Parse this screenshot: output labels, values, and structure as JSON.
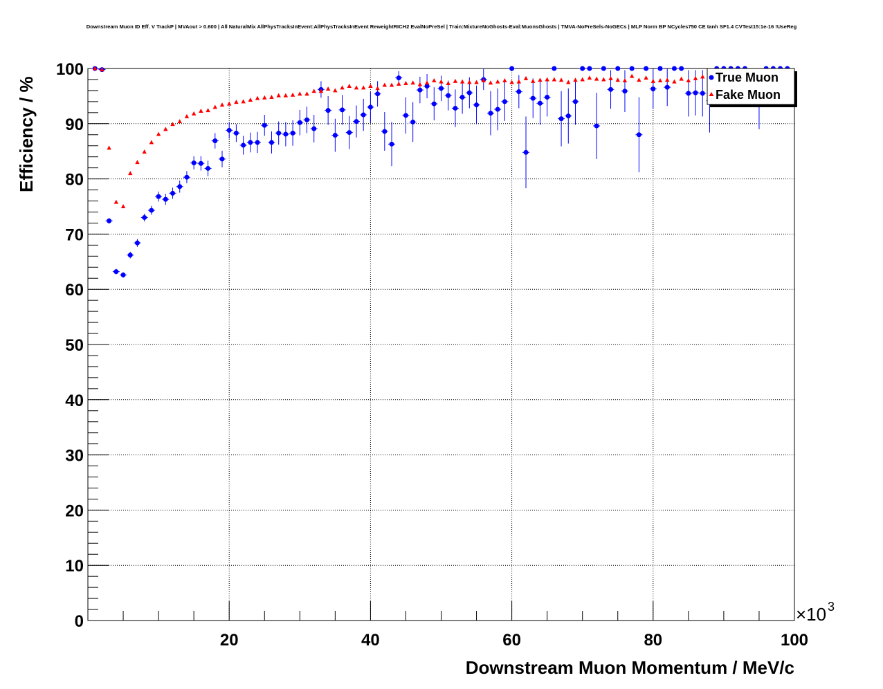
{
  "chart_data": {
    "type": "scatter",
    "title": "Downstream Muon ID Eff. V TrackP | MVAout > 0.600 | All NaturalMix AllPhysTracksInEvent:AllPhysTracksInEvent ReweightRICH2 EvalNoPreSel | Train:MixtureNoGhosts-Eval:MuonsGhosts | TMVA-NoPreSels-NoGECs | MLP Norm BP NCycles750 CE tanh SF1.4 CVTest15:1e-16 !UseReg",
    "xlabel": "Downstream Muon Momentum / MeV/c",
    "ylabel": "Efficiency / %",
    "x_multiplier": "×10",
    "x_multiplier_exp": "3",
    "xlim": [
      0,
      100
    ],
    "ylim": [
      0,
      100
    ],
    "x_ticks": [
      20,
      40,
      60,
      80,
      100
    ],
    "y_ticks": [
      0,
      10,
      20,
      30,
      40,
      50,
      60,
      70,
      80,
      90,
      100
    ],
    "grid": true,
    "legend_position": "top-right",
    "series": [
      {
        "name": "True Muon",
        "color": "#0000ff",
        "marker": "circle",
        "points": [
          {
            "x": 1,
            "y": 100,
            "err": 0
          },
          {
            "x": 2,
            "y": 99.8,
            "err": 0
          },
          {
            "x": 3,
            "y": 72.4,
            "err": 0.5
          },
          {
            "x": 4,
            "y": 63.2,
            "err": 0.5
          },
          {
            "x": 5,
            "y": 62.6,
            "err": 0.5
          },
          {
            "x": 6,
            "y": 66.2,
            "err": 0.6
          },
          {
            "x": 7,
            "y": 68.4,
            "err": 0.7
          },
          {
            "x": 8,
            "y": 73.0,
            "err": 0.7
          },
          {
            "x": 9,
            "y": 74.3,
            "err": 0.8
          },
          {
            "x": 10,
            "y": 76.8,
            "err": 0.9
          },
          {
            "x": 11,
            "y": 76.3,
            "err": 1.0
          },
          {
            "x": 12,
            "y": 77.4,
            "err": 1.0
          },
          {
            "x": 13,
            "y": 78.6,
            "err": 1.1
          },
          {
            "x": 14,
            "y": 80.3,
            "err": 1.1
          },
          {
            "x": 15,
            "y": 82.9,
            "err": 1.2
          },
          {
            "x": 16,
            "y": 82.8,
            "err": 1.3
          },
          {
            "x": 17,
            "y": 81.9,
            "err": 1.4
          },
          {
            "x": 18,
            "y": 86.9,
            "err": 1.4
          },
          {
            "x": 19,
            "y": 83.6,
            "err": 1.5
          },
          {
            "x": 20,
            "y": 88.8,
            "err": 1.5
          },
          {
            "x": 21,
            "y": 88.3,
            "err": 1.6
          },
          {
            "x": 22,
            "y": 86.1,
            "err": 1.7
          },
          {
            "x": 23,
            "y": 86.6,
            "err": 1.8
          },
          {
            "x": 24,
            "y": 86.6,
            "err": 1.9
          },
          {
            "x": 25,
            "y": 89.7,
            "err": 1.9
          },
          {
            "x": 26,
            "y": 86.6,
            "err": 2.0
          },
          {
            "x": 27,
            "y": 88.3,
            "err": 2.1
          },
          {
            "x": 28,
            "y": 88.1,
            "err": 2.2
          },
          {
            "x": 29,
            "y": 88.3,
            "err": 2.3
          },
          {
            "x": 30,
            "y": 90.2,
            "err": 2.3
          },
          {
            "x": 31,
            "y": 90.7,
            "err": 2.4
          },
          {
            "x": 32,
            "y": 89.1,
            "err": 2.5
          },
          {
            "x": 33,
            "y": 96.2,
            "err": 1.5
          },
          {
            "x": 34,
            "y": 92.4,
            "err": 2.6
          },
          {
            "x": 35,
            "y": 87.9,
            "err": 3.0
          },
          {
            "x": 36,
            "y": 92.5,
            "err": 2.7
          },
          {
            "x": 37,
            "y": 88.4,
            "err": 3.0
          },
          {
            "x": 38,
            "y": 90.4,
            "err": 2.9
          },
          {
            "x": 39,
            "y": 91.6,
            "err": 2.9
          },
          {
            "x": 40,
            "y": 93.0,
            "err": 2.8
          },
          {
            "x": 41,
            "y": 95.4,
            "err": 2.3
          },
          {
            "x": 42,
            "y": 88.6,
            "err": 3.5
          },
          {
            "x": 43,
            "y": 86.3,
            "err": 4.0
          },
          {
            "x": 44,
            "y": 98.3,
            "err": 1.2
          },
          {
            "x": 45,
            "y": 91.5,
            "err": 3.3
          },
          {
            "x": 46,
            "y": 90.3,
            "err": 3.6
          },
          {
            "x": 47,
            "y": 96.1,
            "err": 2.4
          },
          {
            "x": 48,
            "y": 96.8,
            "err": 2.2
          },
          {
            "x": 49,
            "y": 93.6,
            "err": 3.0
          },
          {
            "x": 50,
            "y": 96.4,
            "err": 2.3
          },
          {
            "x": 51,
            "y": 95.1,
            "err": 2.7
          },
          {
            "x": 52,
            "y": 92.8,
            "err": 3.4
          },
          {
            "x": 53,
            "y": 94.8,
            "err": 3.0
          },
          {
            "x": 54,
            "y": 95.6,
            "err": 2.8
          },
          {
            "x": 55,
            "y": 93.4,
            "err": 3.5
          },
          {
            "x": 56,
            "y": 98.0,
            "err": 1.9
          },
          {
            "x": 57,
            "y": 91.9,
            "err": 4.0
          },
          {
            "x": 58,
            "y": 92.6,
            "err": 3.8
          },
          {
            "x": 59,
            "y": 94.0,
            "err": 3.5
          },
          {
            "x": 60,
            "y": 100,
            "err": 0
          },
          {
            "x": 61,
            "y": 95.8,
            "err": 3.0
          },
          {
            "x": 62,
            "y": 84.8,
            "err": 6.5
          },
          {
            "x": 63,
            "y": 94.6,
            "err": 3.6
          },
          {
            "x": 64,
            "y": 93.7,
            "err": 3.9
          },
          {
            "x": 65,
            "y": 94.8,
            "err": 3.5
          },
          {
            "x": 66,
            "y": 100,
            "err": 0
          },
          {
            "x": 67,
            "y": 90.9,
            "err": 5.0
          },
          {
            "x": 68,
            "y": 91.4,
            "err": 5.0
          },
          {
            "x": 69,
            "y": 94.0,
            "err": 4.2
          },
          {
            "x": 70,
            "y": 100,
            "err": 0
          },
          {
            "x": 71,
            "y": 100,
            "err": 0
          },
          {
            "x": 72,
            "y": 89.6,
            "err": 6.0
          },
          {
            "x": 73,
            "y": 100,
            "err": 0
          },
          {
            "x": 74,
            "y": 96.2,
            "err": 3.5
          },
          {
            "x": 75,
            "y": 100,
            "err": 0
          },
          {
            "x": 76,
            "y": 95.9,
            "err": 3.8
          },
          {
            "x": 77,
            "y": 100,
            "err": 0
          },
          {
            "x": 78,
            "y": 88.0,
            "err": 6.8
          },
          {
            "x": 79,
            "y": 100,
            "err": 0
          },
          {
            "x": 80,
            "y": 96.3,
            "err": 3.6
          },
          {
            "x": 81,
            "y": 100,
            "err": 0
          },
          {
            "x": 82,
            "y": 96.6,
            "err": 3.4
          },
          {
            "x": 83,
            "y": 100,
            "err": 0
          },
          {
            "x": 84,
            "y": 100,
            "err": 0
          },
          {
            "x": 85,
            "y": 95.5,
            "err": 4.2
          },
          {
            "x": 86,
            "y": 95.6,
            "err": 4.1
          },
          {
            "x": 87,
            "y": 95.5,
            "err": 4.2
          },
          {
            "x": 88,
            "y": 94.2,
            "err": 5.8
          },
          {
            "x": 89,
            "y": 100,
            "err": 0
          },
          {
            "x": 90,
            "y": 100,
            "err": 0
          },
          {
            "x": 91,
            "y": 100,
            "err": 0
          },
          {
            "x": 92,
            "y": 100,
            "err": 0
          },
          {
            "x": 93,
            "y": 100,
            "err": 0
          },
          {
            "x": 95,
            "y": 93.5,
            "err": 4.5
          },
          {
            "x": 96,
            "y": 100,
            "err": 0
          },
          {
            "x": 97,
            "y": 100,
            "err": 0
          },
          {
            "x": 98,
            "y": 100,
            "err": 0
          },
          {
            "x": 99,
            "y": 100,
            "err": 0
          }
        ]
      },
      {
        "name": "Fake Muon",
        "color": "#ff0000",
        "marker": "triangle",
        "points": [
          {
            "x": 1,
            "y": 100
          },
          {
            "x": 2,
            "y": 99.8
          },
          {
            "x": 3,
            "y": 85.6
          },
          {
            "x": 4,
            "y": 75.8
          },
          {
            "x": 5,
            "y": 75.0
          },
          {
            "x": 6,
            "y": 81.0
          },
          {
            "x": 7,
            "y": 83.0
          },
          {
            "x": 8,
            "y": 84.9
          },
          {
            "x": 9,
            "y": 86.6
          },
          {
            "x": 10,
            "y": 88.1
          },
          {
            "x": 11,
            "y": 89.0
          },
          {
            "x": 12,
            "y": 89.9
          },
          {
            "x": 13,
            "y": 90.4
          },
          {
            "x": 14,
            "y": 91.3
          },
          {
            "x": 15,
            "y": 91.8
          },
          {
            "x": 16,
            "y": 92.3
          },
          {
            "x": 17,
            "y": 92.4
          },
          {
            "x": 18,
            "y": 93.0
          },
          {
            "x": 19,
            "y": 93.4
          },
          {
            "x": 20,
            "y": 93.6
          },
          {
            "x": 21,
            "y": 93.9
          },
          {
            "x": 22,
            "y": 94.0
          },
          {
            "x": 23,
            "y": 94.3
          },
          {
            "x": 24,
            "y": 94.6
          },
          {
            "x": 25,
            "y": 94.7
          },
          {
            "x": 26,
            "y": 94.8
          },
          {
            "x": 27,
            "y": 95.1
          },
          {
            "x": 28,
            "y": 95.1
          },
          {
            "x": 29,
            "y": 95.2
          },
          {
            "x": 30,
            "y": 95.4
          },
          {
            "x": 31,
            "y": 95.4
          },
          {
            "x": 32,
            "y": 95.9
          },
          {
            "x": 33,
            "y": 95.9
          },
          {
            "x": 34,
            "y": 96.3
          },
          {
            "x": 35,
            "y": 96.0
          },
          {
            "x": 36,
            "y": 96.5
          },
          {
            "x": 37,
            "y": 96.8
          },
          {
            "x": 38,
            "y": 96.5
          },
          {
            "x": 39,
            "y": 96.5
          },
          {
            "x": 40,
            "y": 96.8
          },
          {
            "x": 41,
            "y": 96.4
          },
          {
            "x": 42,
            "y": 97.0
          },
          {
            "x": 43,
            "y": 97.0
          },
          {
            "x": 44,
            "y": 97.2
          },
          {
            "x": 45,
            "y": 97.3
          },
          {
            "x": 46,
            "y": 97.4
          },
          {
            "x": 47,
            "y": 97.1
          },
          {
            "x": 48,
            "y": 97.4
          },
          {
            "x": 49,
            "y": 97.8
          },
          {
            "x": 50,
            "y": 97.6
          },
          {
            "x": 51,
            "y": 97.3
          },
          {
            "x": 52,
            "y": 97.7
          },
          {
            "x": 53,
            "y": 97.6
          },
          {
            "x": 54,
            "y": 97.5
          },
          {
            "x": 55,
            "y": 97.5
          },
          {
            "x": 56,
            "y": 97.8
          },
          {
            "x": 57,
            "y": 97.4
          },
          {
            "x": 58,
            "y": 97.6
          },
          {
            "x": 59,
            "y": 97.8
          },
          {
            "x": 60,
            "y": 97.5
          },
          {
            "x": 61,
            "y": 97.6
          },
          {
            "x": 62,
            "y": 98.2
          },
          {
            "x": 63,
            "y": 97.7
          },
          {
            "x": 64,
            "y": 97.9
          },
          {
            "x": 65,
            "y": 98.0
          },
          {
            "x": 66,
            "y": 98.0
          },
          {
            "x": 67,
            "y": 97.9
          },
          {
            "x": 68,
            "y": 97.5
          },
          {
            "x": 69,
            "y": 97.9
          },
          {
            "x": 70,
            "y": 98.0
          },
          {
            "x": 71,
            "y": 98.3
          },
          {
            "x": 72,
            "y": 98.1
          },
          {
            "x": 73,
            "y": 98.0
          },
          {
            "x": 74,
            "y": 98.2
          },
          {
            "x": 75,
            "y": 97.9
          },
          {
            "x": 76,
            "y": 97.8
          },
          {
            "x": 77,
            "y": 98.6
          },
          {
            "x": 78,
            "y": 97.9
          },
          {
            "x": 79,
            "y": 98.3
          },
          {
            "x": 80,
            "y": 97.7
          },
          {
            "x": 81,
            "y": 97.8
          },
          {
            "x": 82,
            "y": 97.9
          },
          {
            "x": 83,
            "y": 97.6
          },
          {
            "x": 84,
            "y": 98.1
          },
          {
            "x": 85,
            "y": 97.8
          },
          {
            "x": 86,
            "y": 98.2
          },
          {
            "x": 87,
            "y": 98.5
          },
          {
            "x": 88,
            "y": 98.5
          }
        ]
      }
    ]
  }
}
